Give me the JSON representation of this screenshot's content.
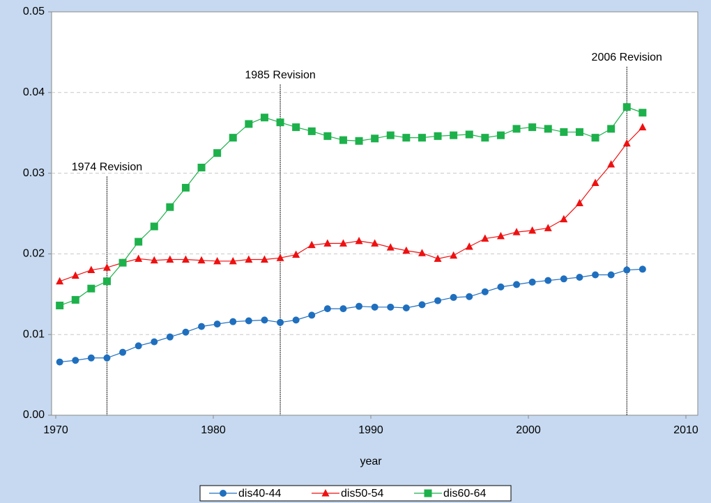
{
  "chart_data": {
    "type": "line",
    "xlabel": "year",
    "x": [
      1970.25,
      1971.25,
      1972.25,
      1973.25,
      1974.25,
      1975.25,
      1976.25,
      1977.25,
      1978.25,
      1979.25,
      1980.25,
      1981.25,
      1982.25,
      1983.25,
      1984.25,
      1985.25,
      1986.25,
      1987.25,
      1988.25,
      1989.25,
      1990.25,
      1991.25,
      1992.25,
      1993.25,
      1994.25,
      1995.25,
      1996.25,
      1997.25,
      1998.25,
      1999.25,
      2000.25,
      2001.25,
      2002.25,
      2003.25,
      2004.25,
      2005.25,
      2006.25,
      2007.25
    ],
    "series": [
      {
        "name": "dis40-44",
        "color": "#1f6fbf",
        "marker": "circle",
        "values": [
          0.0066,
          0.0068,
          0.0071,
          0.0071,
          0.0078,
          0.0086,
          0.0091,
          0.0097,
          0.0103,
          0.011,
          0.0113,
          0.0116,
          0.0117,
          0.0118,
          0.0115,
          0.0118,
          0.0124,
          0.0132,
          0.0132,
          0.0135,
          0.0134,
          0.0134,
          0.0133,
          0.0137,
          0.0142,
          0.0146,
          0.0147,
          0.0153,
          0.0159,
          0.0162,
          0.0165,
          0.0167,
          0.0169,
          0.0171,
          0.0174,
          0.0174,
          0.018,
          0.0181
        ]
      },
      {
        "name": "dis50-54",
        "color": "#ee1111",
        "marker": "triangle",
        "values": [
          0.0166,
          0.0173,
          0.018,
          0.0183,
          0.0189,
          0.0194,
          0.0192,
          0.0193,
          0.0193,
          0.0192,
          0.0191,
          0.0191,
          0.0193,
          0.0193,
          0.0195,
          0.0199,
          0.0211,
          0.0213,
          0.0213,
          0.0216,
          0.0213,
          0.0208,
          0.0204,
          0.0201,
          0.0194,
          0.0198,
          0.0209,
          0.0219,
          0.0222,
          0.0227,
          0.0229,
          0.0232,
          0.0243,
          0.0263,
          0.0288,
          0.0311,
          0.0337,
          0.0357
        ]
      },
      {
        "name": "dis60-64",
        "color": "#1db14b",
        "marker": "square",
        "values": [
          0.0136,
          0.0143,
          0.0157,
          0.0166,
          0.0189,
          0.0215,
          0.0234,
          0.0258,
          0.0282,
          0.0307,
          0.0325,
          0.0344,
          0.0361,
          0.0369,
          0.0363,
          0.0357,
          0.0352,
          0.0346,
          0.0341,
          0.034,
          0.0343,
          0.0347,
          0.0344,
          0.0344,
          0.0346,
          0.0347,
          0.0348,
          0.0344,
          0.0347,
          0.0355,
          0.0357,
          0.0355,
          0.0351,
          0.0351,
          0.0344,
          0.0355,
          0.0382,
          0.0375
        ]
      }
    ],
    "annotations": [
      {
        "text": "1974 Revision",
        "x": 1973.25,
        "y": 0.0296
      },
      {
        "text": "1985 Revision",
        "x": 1984.25,
        "y": 0.041
      },
      {
        "text": "2006 Revision",
        "x": 2006.25,
        "y": 0.0432
      }
    ],
    "xlim": [
      1970,
      2010
    ],
    "xticks": [
      1970,
      1980,
      1990,
      2000,
      2010
    ],
    "ylim": [
      0,
      0.05
    ],
    "yticks": [
      {
        "value": 0,
        "label": "0.00"
      },
      0.01,
      0.02,
      0.03,
      0.04,
      0.05
    ],
    "grid": true,
    "legend": "bottom"
  }
}
